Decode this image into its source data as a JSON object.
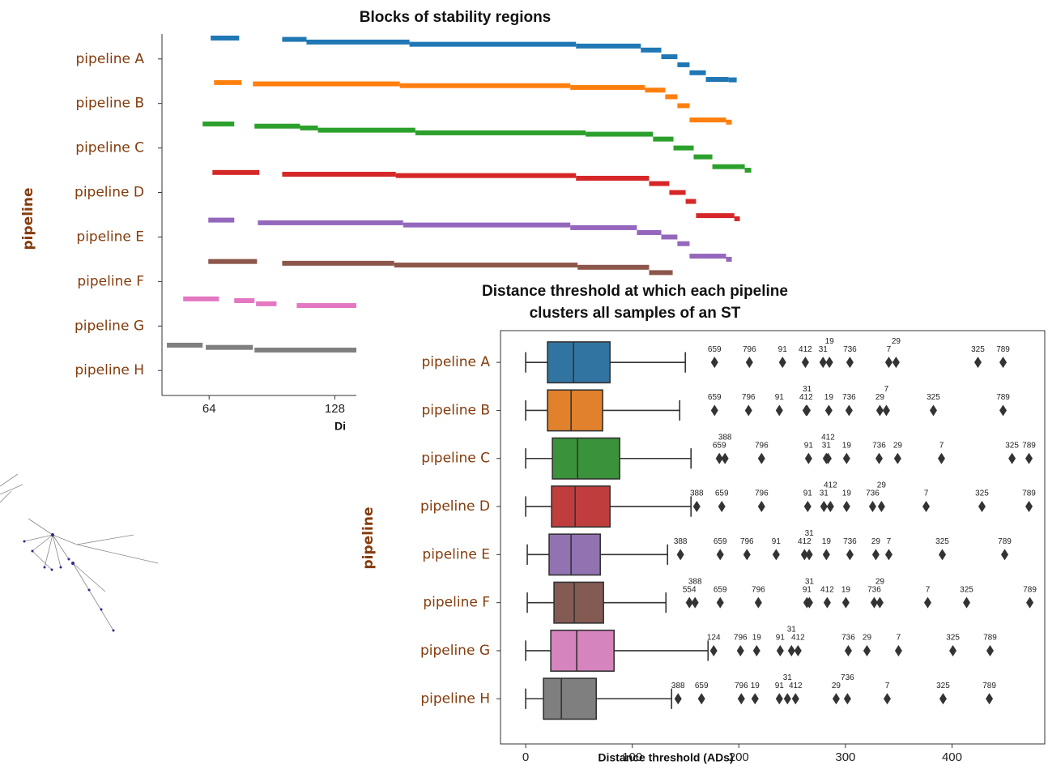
{
  "chart_data": [
    {
      "type": "segments",
      "title": "Blocks of stability regions",
      "xlabel": "Di",
      "ylabel": "pipeline",
      "categories": [
        "pipeline A",
        "pipeline B",
        "pipeline C",
        "pipeline D",
        "pipeline E",
        "pipeline F",
        "pipeline G",
        "pipeline H"
      ],
      "xlim": [
        40,
        341
      ],
      "xticks": [
        64,
        128
      ],
      "ylim": [
        -0.56,
        7.56
      ],
      "series": [
        {
          "color": "#1f77b4",
          "segments": [
            [
              64.8,
              79.3,
              -0.47
            ],
            [
              101.2,
              113.6,
              -0.44
            ],
            [
              113.6,
              166,
              -0.38
            ],
            [
              166,
              250.8,
              -0.33
            ],
            [
              250.8,
              283.8,
              -0.29
            ],
            [
              283.8,
              294.2,
              -0.2
            ],
            [
              294.2,
              302.4,
              -0.05
            ],
            [
              302.4,
              308.6,
              0.13
            ],
            [
              308.6,
              316.9,
              0.31
            ],
            [
              316.9,
              328.5,
              0.46
            ],
            [
              328.5,
              332.6,
              0.47
            ]
          ]
        },
        {
          "color": "#ff7f0e",
          "segments": [
            [
              66.5,
              80.5,
              0.53
            ],
            [
              86.3,
              161.1,
              0.56
            ],
            [
              161.1,
              247.9,
              0.6
            ],
            [
              247.9,
              285.9,
              0.64
            ],
            [
              285.9,
              296.2,
              0.7
            ],
            [
              296.2,
              302.4,
              0.85
            ],
            [
              302.4,
              308.6,
              1.05
            ],
            [
              308.6,
              327.2,
              1.37
            ],
            [
              327.2,
              330.1,
              1.42
            ]
          ]
        },
        {
          "color": "#2ca02c",
          "segments": [
            [
              60.7,
              76.8,
              1.46
            ],
            [
              87.1,
              110.3,
              1.51
            ],
            [
              110.3,
              119.4,
              1.55
            ],
            [
              119.4,
              169,
              1.6
            ],
            [
              169,
              255.7,
              1.66
            ],
            [
              255.7,
              290,
              1.69
            ],
            [
              290,
              300.4,
              1.8
            ],
            [
              300.4,
              310.7,
              2.0
            ],
            [
              310.7,
              320.2,
              2.2
            ],
            [
              320.2,
              336.7,
              2.42
            ],
            [
              336.7,
              340,
              2.5
            ]
          ]
        },
        {
          "color": "#d62728",
          "segments": [
            [
              65.7,
              89.6,
              2.55
            ],
            [
              101.2,
              159,
              2.59
            ],
            [
              159,
              250.8,
              2.62
            ],
            [
              250.8,
              288,
              2.68
            ],
            [
              288,
              298.3,
              2.8
            ],
            [
              298.3,
              306.6,
              3.0
            ],
            [
              306.6,
              311.9,
              3.2
            ],
            [
              311.9,
              331.4,
              3.52
            ],
            [
              331.4,
              334.2,
              3.59
            ]
          ]
        },
        {
          "color": "#9467bd",
          "segments": [
            [
              63.6,
              76.8,
              3.62
            ],
            [
              88.8,
              162.8,
              3.68
            ],
            [
              162.8,
              247.9,
              3.73
            ],
            [
              247.9,
              281.8,
              3.79
            ],
            [
              281.8,
              294.2,
              3.9
            ],
            [
              294.2,
              302.4,
              4.0
            ],
            [
              302.4,
              308.6,
              4.15
            ],
            [
              308.6,
              327.2,
              4.43
            ],
            [
              327.2,
              330.1,
              4.5
            ]
          ]
        },
        {
          "color": "#8c564b",
          "segments": [
            [
              63.6,
              88.4,
              4.55
            ],
            [
              101.2,
              158.2,
              4.59
            ],
            [
              158.2,
              251.6,
              4.63
            ],
            [
              251.6,
              288,
              4.68
            ],
            [
              288,
              300,
              4.8
            ]
          ]
        },
        {
          "color": "#e377c2",
          "segments": [
            [
              50.8,
              69,
              5.39
            ],
            [
              76.8,
              87.1,
              5.43
            ],
            [
              87.9,
              98.3,
              5.5
            ],
            [
              108.6,
              139.2,
              5.54
            ]
          ]
        },
        {
          "color": "#7f7f7f",
          "segments": [
            [
              42.5,
              60.7,
              6.43
            ],
            [
              62.3,
              86.3,
              6.48
            ],
            [
              87.1,
              139.2,
              6.54
            ]
          ]
        }
      ]
    },
    {
      "type": "box",
      "title": [
        "Distance threshold at which each pipeline",
        "clusters all samples of an ST"
      ],
      "xlabel": "Distance threshold (ADs)",
      "ylabel": "pipeline",
      "categories": [
        "pipeline A",
        "pipeline B",
        "pipeline C",
        "pipeline D",
        "pipeline E",
        "pipeline F",
        "pipeline G",
        "pipeline H"
      ],
      "xlim": [
        -23.6,
        487
      ],
      "xticks": [
        0,
        100,
        200,
        300,
        400
      ],
      "ylim": [
        -0.66,
        7.94
      ],
      "series": [
        {
          "color": "#3274a1",
          "whislo": 0,
          "q1": 20.5,
          "med": 44.9,
          "q3": 79.1,
          "whishi": 149.8,
          "outliers": [
            177.2,
            209.9,
            241,
            262.4,
            279,
            285,
            304.2,
            340.7,
            347.5,
            424.3,
            447.9
          ],
          "outlier_labels": [
            "659",
            "796",
            "91",
            "412",
            "31",
            "19",
            "736",
            "7",
            "29",
            "325",
            "789"
          ]
        },
        {
          "color": "#e1812c",
          "whislo": 0,
          "q1": 20.5,
          "med": 42.6,
          "q3": 72.2,
          "whishi": 144.5,
          "outliers": [
            177.2,
            209.1,
            238,
            263.1,
            264,
            284.4,
            303.4,
            332.3,
            338.4,
            382.5,
            447.9
          ],
          "outlier_labels": [
            "659",
            "796",
            "91",
            "412",
            "31",
            "19",
            "736",
            "29",
            "7",
            "325",
            "789"
          ]
        },
        {
          "color": "#3a923a",
          "whislo": 0,
          "q1": 25.1,
          "med": 48.7,
          "q3": 88.2,
          "whishi": 155.1,
          "outliers": [
            181.7,
            187,
            221.3,
            265.4,
            282.1,
            283.7,
            301.1,
            331.6,
            349,
            390.1,
            456.3,
            472.2
          ],
          "outlier_labels": [
            "659",
            "388",
            "796",
            "91",
            "31",
            "412",
            "19",
            "736",
            "29",
            "7",
            "325",
            "789"
          ]
        },
        {
          "color": "#c03d3e",
          "whislo": 0,
          "q1": 24.3,
          "med": 46.4,
          "q3": 79.1,
          "whishi": 155.1,
          "outliers": [
            160.5,
            184,
            221.3,
            264.6,
            279.8,
            285.9,
            301.1,
            325.5,
            333.8,
            375.7,
            428.1,
            472.2
          ],
          "outlier_labels": [
            "388",
            "659",
            "796",
            "91",
            "31",
            "412",
            "19",
            "736",
            "29",
            "7",
            "325",
            "789"
          ]
        },
        {
          "color": "#9372b2",
          "whislo": 1.5,
          "q1": 22,
          "med": 42.6,
          "q3": 70,
          "whishi": 133.1,
          "outliers": [
            145.2,
            182.5,
            207.6,
            235,
            261.6,
            266,
            282.1,
            304.2,
            328.5,
            340.7,
            390.9,
            449.4
          ],
          "outlier_labels": [
            "388",
            "659",
            "796",
            "91",
            "412",
            "31",
            "19",
            "736",
            "29",
            "7",
            "325",
            "789"
          ]
        },
        {
          "color": "#845b53",
          "whislo": 1.5,
          "q1": 26.6,
          "med": 45.6,
          "q3": 73,
          "whishi": 131.6,
          "outliers": [
            153.6,
            158.9,
            182.5,
            218.3,
            263.9,
            266.2,
            282.9,
            300.4,
            327,
            332.3,
            377.2,
            413.7,
            473
          ],
          "outlier_labels": [
            "554",
            "388",
            "659",
            "796",
            "91",
            "31",
            "412",
            "19",
            "736",
            "29",
            "7",
            "325",
            "789"
          ]
        },
        {
          "color": "#d684bd",
          "whislo": 0,
          "q1": 23.6,
          "med": 47.9,
          "q3": 82.9,
          "whishi": 171.1,
          "outliers": [
            176.4,
            201.5,
            216.7,
            238.8,
            249.4,
            255.5,
            302.7,
            320.2,
            349.8,
            400.8,
            435.7
          ],
          "outlier_labels": [
            "124",
            "796",
            "19",
            "91",
            "31",
            "412",
            "736",
            "29",
            "7",
            "325",
            "789"
          ]
        },
        {
          "color": "#7f7f7f",
          "whislo": 0,
          "q1": 16.7,
          "med": 33.5,
          "q3": 66.2,
          "whishi": 136.9,
          "outliers": [
            143,
            165,
            202.3,
            215.2,
            238,
            245.6,
            253.2,
            291.3,
            301.9,
            339.2,
            391.6,
            435
          ],
          "outlier_labels": [
            "388",
            "659",
            "796",
            "19",
            "91",
            "31",
            "412",
            "29",
            "736",
            "7",
            "325",
            "789"
          ]
        }
      ]
    }
  ]
}
